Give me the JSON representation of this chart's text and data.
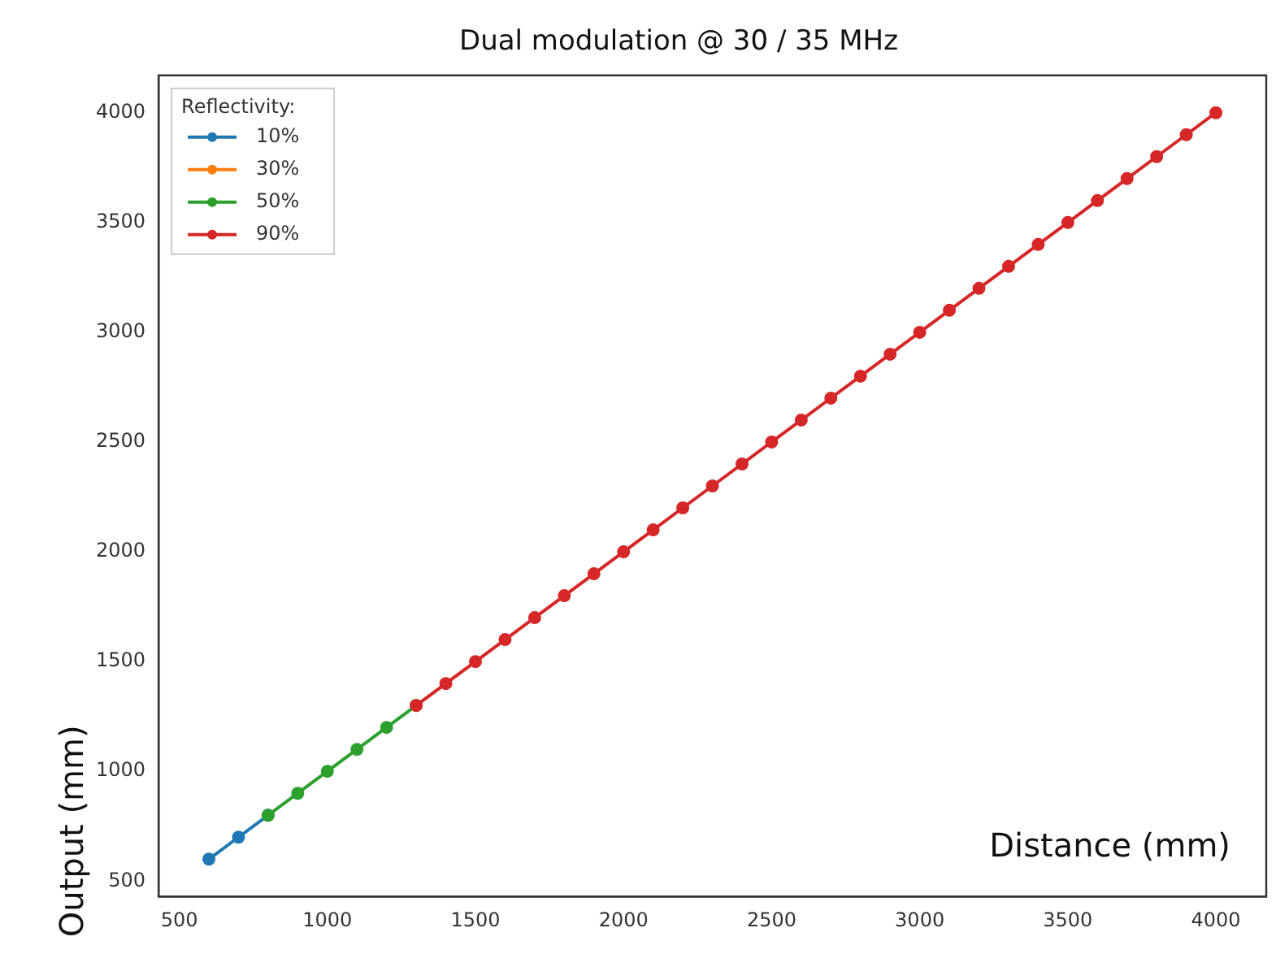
{
  "chart_data": {
    "type": "line",
    "title": "Dual modulation @ 30 / 35 MHz",
    "xlabel": "Distance (mm)",
    "ylabel": "Output (mm)",
    "legend_title": "Reflectivity:",
    "legend": "top left",
    "marker": "circle",
    "line_style": "solid",
    "grid": false,
    "xlim": [
      430,
      4170
    ],
    "ylim": [
      430,
      4170
    ],
    "xticks": [
      500,
      1000,
      1500,
      2000,
      2500,
      3000,
      3500,
      4000
    ],
    "yticks": [
      500,
      1000,
      1500,
      2000,
      2500,
      3000,
      3500,
      4000
    ],
    "series": [
      {
        "name": "10%",
        "color": "#1f77b4",
        "x": [
          600,
          700,
          800
        ],
        "values": [
          600,
          700,
          800
        ]
      },
      {
        "name": "30%",
        "color": "#ff7f0e"
      },
      {
        "name": "50%",
        "color": "#2ca02c",
        "x": [
          800,
          900,
          1000,
          1100,
          1200,
          1300
        ],
        "values": [
          800,
          900,
          1000,
          1100,
          1200,
          1300
        ]
      },
      {
        "name": "90%",
        "color": "#d62728",
        "x": [
          1300,
          1400,
          1500,
          1600,
          1700,
          1800,
          1900,
          2000,
          2100,
          2200,
          2300,
          2400,
          2500,
          2600,
          2700,
          2800,
          2900,
          3000,
          3100,
          3200,
          3300,
          3400,
          3500,
          3600,
          3700,
          3800,
          3900,
          4000
        ],
        "values": [
          1300,
          1400,
          1500,
          1600,
          1700,
          1800,
          1900,
          2000,
          2100,
          2200,
          2300,
          2400,
          2500,
          2600,
          2700,
          2800,
          2900,
          3000,
          3100,
          3200,
          3300,
          3400,
          3500,
          3600,
          3700,
          3800,
          3900,
          4000
        ]
      }
    ]
  }
}
